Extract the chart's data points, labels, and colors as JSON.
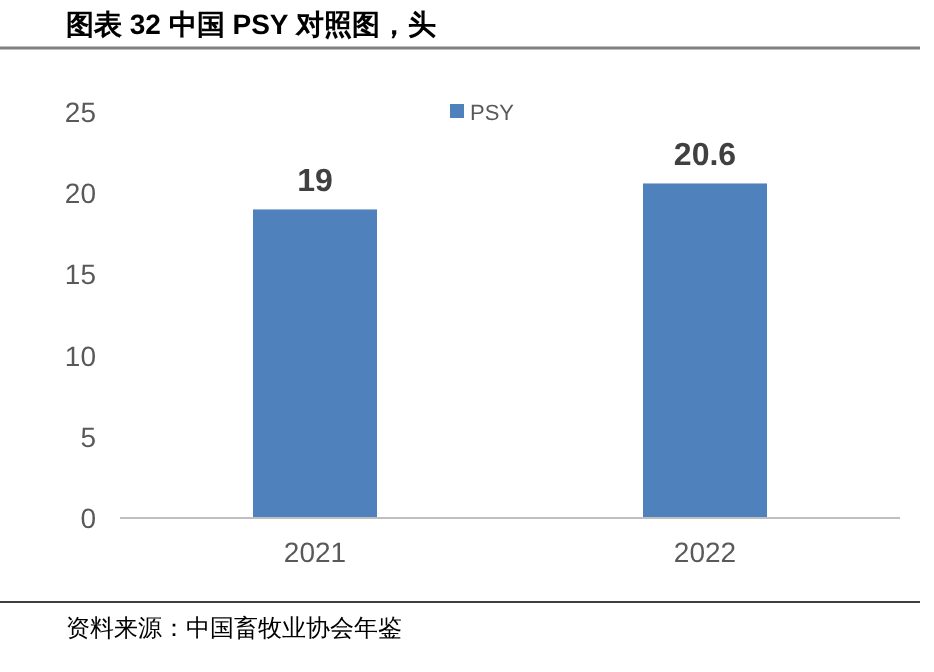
{
  "chart_data": {
    "type": "bar",
    "title": "图表 32 中国 PSY 对照图，头",
    "categories": [
      "2021",
      "2022"
    ],
    "series": [
      {
        "name": "PSY",
        "color": "#4f81bd",
        "values": [
          19,
          20.6
        ]
      }
    ],
    "ylim": [
      0,
      25
    ],
    "yticks": [
      0,
      5,
      10,
      15,
      20,
      25
    ],
    "data_labels": true,
    "legend": "top",
    "grid": false,
    "annotations": [
      "资料来源：中国畜牧业协会年鉴"
    ]
  }
}
